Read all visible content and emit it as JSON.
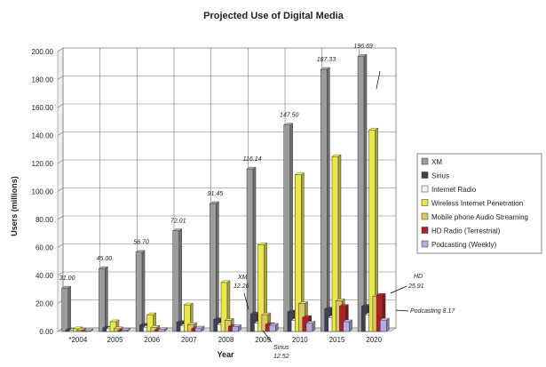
{
  "chart_data": {
    "type": "bar",
    "title": "Projected Use of Digital Media",
    "xlabel": "Year",
    "ylabel": "Users (millions)",
    "ylim": [
      0,
      200
    ],
    "ytick_labels": [
      "0.00",
      "20.00",
      "40.00",
      "60.00",
      "80.00",
      "100.00",
      "120.00",
      "140.00",
      "160.00",
      "180.00",
      "200.00"
    ],
    "grid": true,
    "legend_position": "right",
    "categories": [
      "*2004",
      "2005",
      "2006",
      "2007",
      "2008",
      "2009",
      "2010",
      "2015",
      "2020"
    ],
    "series": [
      {
        "name": "XM",
        "color": "#9c9c9c",
        "values": [
          31.0,
          45.0,
          56.7,
          72.01,
          91.45,
          116.14,
          147.5,
          187.33,
          196.69
        ]
      },
      {
        "name": "Sirius",
        "color": "#404055",
        "values": [
          1.0,
          2.5,
          4.5,
          6.5,
          8.5,
          12.52,
          14.0,
          16.0,
          18.0
        ]
      },
      {
        "name": "Internet Radio",
        "color": "#f4f4f0",
        "values": [
          1.0,
          2.0,
          3.0,
          4.0,
          5.0,
          6.0,
          8.0,
          10.0,
          12.0
        ]
      },
      {
        "name": "Wireless Internet Penetration",
        "color": "#e8e84a",
        "values": [
          2.0,
          7.0,
          12.0,
          19.0,
          35.0,
          62.0,
          112.0,
          125.0,
          144.0
        ]
      },
      {
        "name": "Mobile  phone Audio Streaming",
        "color": "#d8c860",
        "values": [
          1.0,
          2.0,
          3.0,
          5.0,
          8.0,
          12.0,
          20.0,
          22.0,
          25.0
        ]
      },
      {
        "name": "HD Radio (Terrestrial)",
        "color": "#b02020",
        "values": [
          0.0,
          0.5,
          1.0,
          2.0,
          3.5,
          5.0,
          10.0,
          18.0,
          25.91
        ]
      },
      {
        "name": "Podcasting (Weekly)",
        "color": "#b8a8e0",
        "values": [
          0.5,
          1.0,
          1.5,
          2.5,
          3.5,
          4.5,
          6.0,
          7.0,
          8.17
        ]
      }
    ],
    "data_labels": [
      "31.00",
      "45.00",
      "56.70",
      "72.01",
      "91.45",
      "116.14",
      "147.50",
      "187.33",
      "196.69"
    ],
    "annotations": [
      {
        "line1": "XM",
        "line2": "12.26"
      },
      {
        "line1": "Sirius",
        "line2": "12.52"
      },
      {
        "line1": "HD",
        "line2": "25.91"
      },
      {
        "line1": "Podcasting",
        "line2": "8.17"
      }
    ]
  }
}
